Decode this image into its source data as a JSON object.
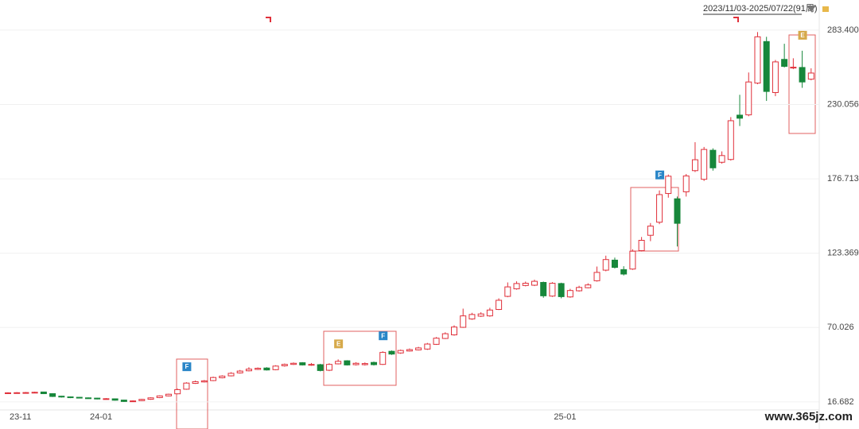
{
  "chart_data": {
    "type": "candlestick",
    "range_label": "2023/11/03-2025/07/22(91周)",
    "watermark": "www.365jz.com",
    "up_color": "#e0303a",
    "down_color": "#17873b",
    "grid": true,
    "ylim": [
      11.5,
      305
    ],
    "yticks": [
      16.682,
      70.026,
      123.369,
      176.713,
      230.056,
      {
        "value": 283.4,
        "label": "283.400"
      }
    ],
    "categories": [
      "23-11",
      null,
      null,
      null,
      null,
      null,
      null,
      null,
      null,
      "24-01",
      null,
      null,
      null,
      null,
      null,
      null,
      null,
      null,
      null,
      null,
      null,
      null,
      null,
      null,
      null,
      null,
      null,
      null,
      null,
      null,
      null,
      null,
      null,
      null,
      null,
      null,
      null,
      null,
      null,
      null,
      null,
      null,
      null,
      null,
      null,
      null,
      null,
      null,
      null,
      null,
      null,
      null,
      null,
      null,
      null,
      null,
      null,
      null,
      null,
      null,
      null,
      "25-01",
      null,
      null,
      null,
      null,
      null,
      null,
      null,
      null,
      null,
      null,
      null,
      null,
      null,
      null,
      null,
      null,
      null,
      null,
      null,
      null,
      null,
      null,
      null,
      null,
      null,
      null,
      null,
      null,
      null
    ],
    "open": [
      22.8,
      23.0,
      23.1,
      23.3,
      23.8,
      22.6,
      20.8,
      20.3,
      20.0,
      19.6,
      19.4,
      18.6,
      18.9,
      18.0,
      17.0,
      17.6,
      18.6,
      19.8,
      21.0,
      22.5,
      25.8,
      30.0,
      31.0,
      32.0,
      34.0,
      35.4,
      37.5,
      39.0,
      40.0,
      41.0,
      39.8,
      42.6,
      43.6,
      44.8,
      43.0,
      43.4,
      39.4,
      44.0,
      46.2,
      43.4,
      43.4,
      45.0,
      43.6,
      53.0,
      51.8,
      53.2,
      54.0,
      54.6,
      58.0,
      62.2,
      64.8,
      70.2,
      76.2,
      78.2,
      78.4,
      83.0,
      92.4,
      97.8,
      100.2,
      100.4,
      102.4,
      92.6,
      101.6,
      92.0,
      96.4,
      98.6,
      103.6,
      111.2,
      118.4,
      111.6,
      112.0,
      125.2,
      136.2,
      145.6,
      166.2,
      162.4,
      167.4,
      182.6,
      176.4,
      197.2,
      188.6,
      190.6,
      222.4,
      222.6,
      245.4,
      275.2,
      238.6,
      262.4,
      256.2,
      256.6,
      248.2
    ],
    "close": [
      23.2,
      23.3,
      23.4,
      23.6,
      22.6,
      20.6,
      20.2,
      19.8,
      19.5,
      19.2,
      18.8,
      19.0,
      17.9,
      17.0,
      17.4,
      18.5,
      19.6,
      21.0,
      22.2,
      25.5,
      30.2,
      31.2,
      31.8,
      34.2,
      35.2,
      37.2,
      38.8,
      40.2,
      40.8,
      39.6,
      42.4,
      43.6,
      44.4,
      43.2,
      43.6,
      39.2,
      43.6,
      45.8,
      43.2,
      44.4,
      44.2,
      43.4,
      52.2,
      51.0,
      53.6,
      54.2,
      55.4,
      58.2,
      62.4,
      65.6,
      70.4,
      78.4,
      79.4,
      79.8,
      82.6,
      89.6,
      99.2,
      101.6,
      101.8,
      103.2,
      92.8,
      101.8,
      92.2,
      96.6,
      98.8,
      100.6,
      109.6,
      118.8,
      113.2,
      108.4,
      124.8,
      132.6,
      142.8,
      165.4,
      178.6,
      144.8,
      178.8,
      190.4,
      197.8,
      184.6,
      193.4,
      218.4,
      220.2,
      246.2,
      278.6,
      239.4,
      260.6,
      257.4,
      256.8,
      246.2,
      252.6
    ],
    "high": [
      23.6,
      23.7,
      23.8,
      24.0,
      24.0,
      22.8,
      21.0,
      20.6,
      20.2,
      19.9,
      19.6,
      19.4,
      19.2,
      18.2,
      17.8,
      18.9,
      20.0,
      21.4,
      22.6,
      26.2,
      30.8,
      32.0,
      32.4,
      34.8,
      35.8,
      38.0,
      39.6,
      41.6,
      41.4,
      41.6,
      43.0,
      44.2,
      45.0,
      45.2,
      44.6,
      44.0,
      44.4,
      47.2,
      46.6,
      45.2,
      45.0,
      45.6,
      53.0,
      53.6,
      54.2,
      55.0,
      56.2,
      59.0,
      63.2,
      66.6,
      71.6,
      83.6,
      80.6,
      81.0,
      84.2,
      91.0,
      102.4,
      103.2,
      103.0,
      104.4,
      103.0,
      102.6,
      102.2,
      97.8,
      100.0,
      101.8,
      113.8,
      121.6,
      120.2,
      114.0,
      126.2,
      135.0,
      145.0,
      168.4,
      179.8,
      164.0,
      180.2,
      203.0,
      199.6,
      198.6,
      196.4,
      221.0,
      237.0,
      253.0,
      282.0,
      278.6,
      262.0,
      273.6,
      263.2,
      268.6,
      256.0
    ],
    "low": [
      22.4,
      22.6,
      22.8,
      23.0,
      22.3,
      20.2,
      19.8,
      19.4,
      19.2,
      18.9,
      18.5,
      18.3,
      17.6,
      16.7,
      16.8,
      17.3,
      18.2,
      19.4,
      20.6,
      22.2,
      25.4,
      29.6,
      30.6,
      31.6,
      33.6,
      35.0,
      37.0,
      38.6,
      39.6,
      39.2,
      39.4,
      42.0,
      43.2,
      42.8,
      42.6,
      38.6,
      38.8,
      43.6,
      42.8,
      42.8,
      42.8,
      42.8,
      43.2,
      50.4,
      51.2,
      52.8,
      53.6,
      54.0,
      57.6,
      61.8,
      64.2,
      69.8,
      75.6,
      77.6,
      77.8,
      82.6,
      91.8,
      97.2,
      99.6,
      99.8,
      91.4,
      92.0,
      91.0,
      91.4,
      95.8,
      98.2,
      103.0,
      110.4,
      112.4,
      107.4,
      111.4,
      124.6,
      132.0,
      144.2,
      163.2,
      128.2,
      164.0,
      181.6,
      175.2,
      182.6,
      187.6,
      189.8,
      214.6,
      221.6,
      244.6,
      232.6,
      236.0,
      256.6,
      255.4,
      242.0,
      247.4
    ],
    "markers": [
      {
        "index": 20,
        "label": "F",
        "color": "#2a86c8"
      },
      {
        "index": 37,
        "label": "E",
        "color": "#d6a94a"
      },
      {
        "index": 42,
        "label": "F",
        "color": "#2a86c8"
      },
      {
        "index": 73,
        "label": "F",
        "color": "#2a86c8"
      },
      {
        "index": 89,
        "label": "E",
        "color": "#d6a94a"
      }
    ]
  }
}
